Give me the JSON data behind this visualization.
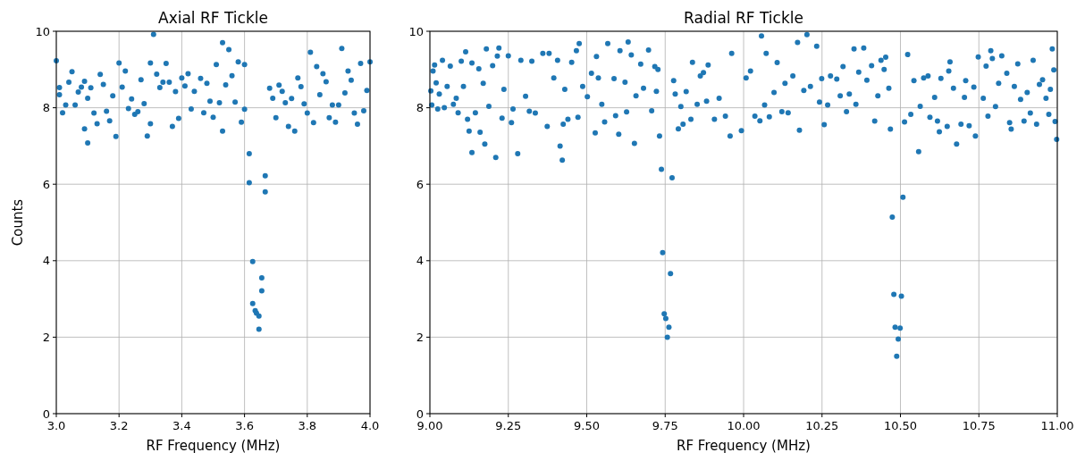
{
  "chart_data": [
    {
      "type": "scatter",
      "title": "Axial RF Tickle",
      "xlabel": "RF Frequency (MHz)",
      "ylabel": "Counts",
      "xlim": [
        3,
        4
      ],
      "xticks": [
        {
          "value": 3,
          "label": "3.0"
        },
        {
          "value": 3.2,
          "label": "3.2"
        },
        {
          "value": 3.4,
          "label": "3.4"
        },
        {
          "value": 3.6,
          "label": "3.6"
        },
        {
          "value": 3.8,
          "label": "3.8"
        },
        {
          "value": 4,
          "label": "4.0"
        }
      ],
      "ylim": [
        0,
        10
      ],
      "yticks": [
        0,
        2,
        4,
        6,
        8,
        10
      ],
      "grid": true,
      "marker": "circle",
      "series": [
        {
          "color": "#1f77b4",
          "x": [
            3.0,
            3.01,
            3.01,
            3.02,
            3.03,
            3.04,
            3.05,
            3.06,
            3.07,
            3.08,
            3.09,
            3.09,
            3.1,
            3.1,
            3.11,
            3.12,
            3.13,
            3.14,
            3.15,
            3.16,
            3.17,
            3.18,
            3.19,
            3.2,
            3.21,
            3.22,
            3.23,
            3.24,
            3.25,
            3.26,
            3.27,
            3.28,
            3.29,
            3.3,
            3.3,
            3.31,
            3.32,
            3.33,
            3.34,
            3.35,
            3.36,
            3.37,
            3.38,
            3.39,
            3.4,
            3.41,
            3.42,
            3.43,
            3.44,
            3.46,
            3.47,
            3.48,
            3.49,
            3.5,
            3.51,
            3.52,
            3.53,
            3.53,
            3.54,
            3.55,
            3.56,
            3.57,
            3.58,
            3.59,
            3.6,
            3.6,
            3.615,
            3.615,
            3.626,
            3.626,
            3.634,
            3.638,
            3.646,
            3.646,
            3.655,
            3.655,
            3.666,
            3.666,
            3.68,
            3.69,
            3.7,
            3.71,
            3.72,
            3.73,
            3.74,
            3.75,
            3.76,
            3.77,
            3.78,
            3.79,
            3.8,
            3.81,
            3.82,
            3.83,
            3.84,
            3.85,
            3.86,
            3.87,
            3.88,
            3.89,
            3.9,
            3.91,
            3.92,
            3.93,
            3.94,
            3.95,
            3.96,
            3.97,
            3.98,
            3.99,
            4.0
          ],
          "values": [
            9.23,
            8.53,
            8.34,
            7.87,
            8.07,
            8.67,
            8.94,
            8.07,
            8.41,
            8.54,
            8.69,
            7.45,
            7.08,
            8.25,
            8.52,
            7.86,
            7.58,
            8.87,
            8.61,
            7.91,
            7.66,
            8.31,
            7.25,
            9.17,
            8.54,
            8.96,
            7.98,
            8.23,
            7.83,
            7.9,
            8.73,
            8.11,
            7.26,
            7.58,
            9.17,
            9.92,
            8.88,
            8.53,
            8.67,
            9.16,
            8.67,
            7.51,
            8.42,
            7.72,
            8.78,
            8.57,
            8.89,
            7.97,
            8.43,
            8.77,
            7.87,
            8.64,
            8.17,
            7.75,
            9.13,
            8.13,
            7.39,
            9.7,
            8.6,
            9.52,
            8.84,
            8.15,
            9.2,
            7.62,
            9.13,
            7.96,
            6.8,
            6.04,
            3.98,
            2.88,
            2.69,
            2.63,
            2.55,
            2.21,
            3.55,
            3.21,
            6.22,
            5.8,
            8.51,
            8.25,
            7.74,
            8.59,
            8.43,
            8.13,
            7.51,
            8.24,
            7.39,
            8.78,
            8.55,
            8.1,
            7.86,
            9.45,
            7.61,
            9.08,
            8.34,
            8.89,
            8.68,
            7.74,
            8.07,
            7.62,
            8.07,
            9.55,
            8.39,
            8.96,
            8.72,
            7.86,
            7.57,
            9.16,
            7.92,
            8.45,
            9.2
          ]
        }
      ]
    },
    {
      "type": "scatter",
      "title": "Radial RF Tickle",
      "xlabel": "RF Frequency (MHz)",
      "xlim": [
        9,
        11
      ],
      "xticks": [
        {
          "value": 9,
          "label": "9.00"
        },
        {
          "value": 9.25,
          "label": "9.25"
        },
        {
          "value": 9.5,
          "label": "9.50"
        },
        {
          "value": 9.75,
          "label": "9.75"
        },
        {
          "value": 10,
          "label": "10.00"
        },
        {
          "value": 10.25,
          "label": "10.25"
        },
        {
          "value": 10.5,
          "label": "10.50"
        },
        {
          "value": 10.75,
          "label": "10.75"
        },
        {
          "value": 11,
          "label": "11.00"
        }
      ],
      "ylim": [
        0,
        10
      ],
      "yticks": [
        0,
        2,
        4,
        6,
        8,
        10
      ],
      "grid": true,
      "marker": "circle",
      "series": [
        {
          "color": "#1f77b4",
          "x": [
            9.003,
            9.006,
            9.01,
            9.015,
            9.02,
            9.025,
            9.03,
            9.04,
            9.046,
            9.055,
            9.065,
            9.075,
            9.084,
            9.09,
            9.1,
            9.107,
            9.114,
            9.12,
            9.125,
            9.134,
            9.134,
            9.145,
            9.156,
            9.16,
            9.17,
            9.175,
            9.18,
            9.188,
            9.2,
            9.21,
            9.215,
            9.22,
            9.23,
            9.236,
            9.25,
            9.26,
            9.265,
            9.28,
            9.29,
            9.305,
            9.317,
            9.325,
            9.336,
            9.36,
            9.374,
            9.38,
            9.395,
            9.407,
            9.415,
            9.422,
            9.425,
            9.43,
            9.44,
            9.452,
            9.467,
            9.472,
            9.476,
            9.487,
            9.502,
            9.515,
            9.527,
            9.531,
            9.537,
            9.548,
            9.557,
            9.567,
            9.587,
            9.592,
            9.602,
            9.606,
            9.622,
            9.627,
            9.632,
            9.642,
            9.652,
            9.657,
            9.672,
            9.681,
            9.697,
            9.707,
            9.717,
            9.722,
            9.727,
            9.732,
            9.738,
            9.742,
            9.747,
            9.752,
            9.757,
            9.762,
            9.767,
            9.772,
            9.777,
            9.782,
            9.792,
            9.8,
            9.807,
            9.817,
            9.832,
            9.837,
            9.852,
            9.862,
            9.872,
            9.882,
            9.887,
            9.907,
            9.922,
            9.942,
            9.957,
            9.962,
            9.993,
            10.008,
            10.022,
            10.036,
            10.052,
            10.057,
            10.067,
            10.072,
            10.082,
            10.097,
            10.107,
            10.122,
            10.132,
            10.142,
            10.157,
            10.172,
            10.178,
            10.192,
            10.202,
            10.213,
            10.233,
            10.242,
            10.249,
            10.257,
            10.268,
            10.277,
            10.297,
            10.308,
            10.317,
            10.328,
            10.337,
            10.352,
            10.358,
            10.367,
            10.383,
            10.393,
            10.408,
            10.418,
            10.428,
            10.438,
            10.448,
            10.453,
            10.463,
            10.468,
            10.474,
            10.479,
            10.483,
            10.488,
            10.493,
            10.499,
            10.503,
            10.508,
            10.513,
            10.523,
            10.533,
            10.543,
            10.558,
            10.563,
            10.574,
            10.588,
            10.594,
            10.609,
            10.618,
            10.624,
            10.629,
            10.649,
            10.654,
            10.658,
            10.669,
            10.679,
            10.693,
            10.704,
            10.708,
            10.719,
            10.734,
            10.739,
            10.748,
            10.764,
            10.773,
            10.779,
            10.788,
            10.793,
            10.803,
            10.813,
            10.823,
            10.839,
            10.848,
            10.853,
            10.863,
            10.874,
            10.883,
            10.894,
            10.904,
            10.914,
            10.923,
            10.934,
            10.943,
            10.953,
            10.964,
            10.973,
            10.978,
            10.984,
            10.989,
            10.993,
            10.998
          ],
          "values": [
            8.44,
            8.07,
            8.96,
            9.12,
            8.65,
            7.97,
            8.36,
            9.24,
            8.0,
            8.56,
            9.09,
            8.09,
            8.25,
            7.87,
            9.22,
            8.56,
            9.46,
            7.7,
            7.39,
            6.83,
            9.17,
            7.87,
            9.02,
            7.36,
            8.64,
            7.05,
            9.54,
            8.04,
            9.1,
            6.7,
            9.35,
            9.56,
            7.73,
            8.48,
            9.36,
            7.61,
            7.97,
            6.8,
            9.24,
            8.3,
            7.91,
            9.22,
            7.86,
            9.42,
            7.51,
            9.42,
            8.78,
            9.24,
            7.0,
            6.63,
            7.57,
            8.48,
            7.7,
            9.19,
            9.49,
            7.75,
            9.68,
            8.56,
            8.29,
            8.9,
            7.34,
            9.34,
            8.78,
            8.09,
            7.63,
            9.68,
            8.76,
            7.79,
            7.31,
            9.49,
            8.67,
            7.89,
            9.72,
            9.38,
            7.07,
            8.31,
            9.14,
            8.51,
            9.51,
            7.92,
            9.08,
            8.43,
            9.0,
            7.26,
            6.39,
            4.21,
            2.61,
            2.49,
            2.0,
            2.26,
            3.66,
            6.17,
            8.71,
            8.36,
            7.45,
            8.03,
            7.57,
            8.42,
            7.7,
            9.19,
            8.09,
            8.83,
            8.92,
            8.17,
            9.12,
            7.7,
            8.25,
            7.78,
            7.26,
            9.42,
            7.4,
            8.78,
            8.96,
            7.78,
            7.66,
            9.88,
            8.07,
            9.42,
            7.76,
            8.4,
            9.18,
            7.9,
            8.64,
            7.87,
            8.83,
            9.71,
            7.41,
            8.45,
            9.91,
            8.56,
            9.61,
            8.15,
            8.76,
            7.56,
            8.07,
            8.83,
            8.75,
            8.31,
            9.08,
            7.9,
            8.36,
            9.54,
            8.09,
            8.93,
            9.56,
            8.72,
            9.1,
            7.65,
            8.31,
            9.24,
            9.0,
            9.32,
            8.51,
            7.44,
            5.14,
            3.12,
            2.26,
            1.5,
            1.95,
            2.24,
            3.07,
            5.66,
            7.63,
            9.39,
            7.83,
            8.71,
            6.85,
            8.04,
            8.78,
            8.83,
            7.75,
            8.27,
            7.65,
            7.37,
            8.77,
            7.51,
            8.96,
            9.2,
            8.51,
            7.05,
            7.57,
            8.27,
            8.71,
            7.53,
            8.54,
            7.26,
            9.33,
            8.25,
            9.09,
            7.78,
            9.49,
            9.29,
            8.03,
            8.64,
            9.36,
            8.9,
            7.61,
            7.44,
            8.56,
            9.15,
            8.22,
            7.65,
            8.4,
            7.86,
            9.24,
            7.57,
            8.61,
            8.73,
            8.25,
            7.83,
            8.48,
            9.54,
            8.99,
            7.64,
            7.17
          ]
        }
      ]
    }
  ]
}
